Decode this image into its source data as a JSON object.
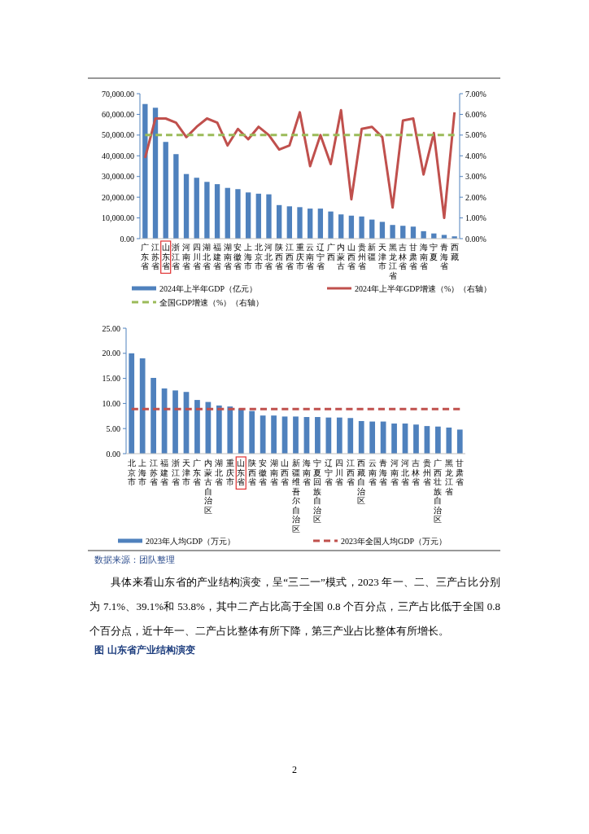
{
  "chart_data": [
    {
      "type": "bar",
      "categories": [
        "广东省",
        "江苏省",
        "山东省",
        "浙江省",
        "河南省",
        "四川省",
        "湖北省",
        "福建省",
        "湖南省",
        "安徽省",
        "上海市",
        "北京市",
        "河北省",
        "陕西省",
        "江西省",
        "重庆市",
        "云南省",
        "辽宁省",
        "广西",
        "内蒙古",
        "山西省",
        "贵州省",
        "新疆",
        "天津市",
        "黑龙江省",
        "吉林省",
        "甘肃省",
        "海南省",
        "宁夏",
        "青海省",
        "西藏"
      ],
      "series": [
        {
          "name": "2024年上半年GDP（亿元）",
          "color": "#4f81bd",
          "values": [
            65000,
            63200,
            46700,
            40800,
            31200,
            29400,
            27400,
            26300,
            24500,
            23900,
            22300,
            21700,
            21400,
            16200,
            15600,
            15200,
            14500,
            14500,
            13100,
            11700,
            11100,
            10700,
            9200,
            8100,
            6600,
            6200,
            5800,
            3600,
            2500,
            1800,
            1100
          ]
        },
        {
          "name": "2024年上半年GDP增速（%）（右轴）",
          "type": "line",
          "axis": "y2",
          "color": "#c0504d",
          "line_style": "solid",
          "values": [
            3.9,
            5.8,
            5.8,
            5.6,
            4.9,
            5.4,
            5.8,
            5.6,
            4.5,
            5.3,
            4.8,
            5.4,
            5.0,
            4.3,
            4.5,
            6.1,
            3.5,
            5.0,
            3.6,
            6.2,
            1.9,
            5.3,
            5.4,
            4.9,
            1.5,
            5.7,
            5.8,
            3.1,
            5.1,
            1.0,
            6.1
          ]
        },
        {
          "name": "全国GDP增速（%）（右轴）",
          "type": "line",
          "axis": "y2",
          "color": "#9bbb59",
          "line_style": "dashed",
          "values": [
            5,
            5,
            5,
            5,
            5,
            5,
            5,
            5,
            5,
            5,
            5,
            5,
            5,
            5,
            5,
            5,
            5,
            5,
            5,
            5,
            5,
            5,
            5,
            5,
            5,
            5,
            5,
            5,
            5,
            5,
            5
          ]
        }
      ],
      "ylim": [
        0,
        70000
      ],
      "yticks": [
        {
          "value": 0,
          "label": "0.00"
        },
        {
          "value": 10000,
          "label": "10,000.00"
        },
        {
          "value": 20000,
          "label": "20,000.00"
        },
        {
          "value": 30000,
          "label": "30,000.00"
        },
        {
          "value": 40000,
          "label": "40,000.00"
        },
        {
          "value": 50000,
          "label": "50,000.00"
        },
        {
          "value": 60000,
          "label": "60,000.00"
        },
        {
          "value": 70000,
          "label": "70,000.00"
        }
      ],
      "y2lim": [
        0,
        7
      ],
      "y2ticks": [
        {
          "value": 0,
          "label": "0.00%"
        },
        {
          "value": 1,
          "label": "1.00%"
        },
        {
          "value": 2,
          "label": "2.00%"
        },
        {
          "value": 3,
          "label": "3.00%"
        },
        {
          "value": 4,
          "label": "4.00%"
        },
        {
          "value": 5,
          "label": "5.00%"
        },
        {
          "value": 6,
          "label": "6.00%"
        },
        {
          "value": 7,
          "label": "7.00%"
        }
      ],
      "grid": false,
      "legend": "bottom",
      "marker": "none"
    },
    {
      "type": "bar",
      "categories": [
        "北京市",
        "上海市",
        "江苏省",
        "福建省",
        "浙江省",
        "天津市",
        "广东省",
        "内蒙古自治区",
        "湖北省",
        "重庆市",
        "山东省",
        "陕西省",
        "安徽省",
        "湖南省",
        "山西省",
        "新疆维吾尔自治区",
        "海南省",
        "宁夏回族自治区",
        "辽宁省",
        "四川省",
        "江西省",
        "西藏自治区",
        "云南省",
        "青海省",
        "河南省",
        "河北省",
        "吉林省",
        "贵州省",
        "广西壮族自治区",
        "黑龙江省",
        "甘肃省"
      ],
      "series": [
        {
          "name": "2023年人均GDP（万元）",
          "color": "#4f81bd",
          "values": [
            20.0,
            19.0,
            15.1,
            13.0,
            12.6,
            12.3,
            10.7,
            10.3,
            9.6,
            9.4,
            9.0,
            8.5,
            7.6,
            7.6,
            7.4,
            7.4,
            7.3,
            7.3,
            7.2,
            7.2,
            7.1,
            6.5,
            6.4,
            6.4,
            6.0,
            6.0,
            5.8,
            5.5,
            5.4,
            5.2,
            4.8
          ]
        },
        {
          "name": "2023年全国人均GDP（万元）",
          "type": "line",
          "color": "#c0504d",
          "line_style": "dashed",
          "values": [
            8.9,
            8.9,
            8.9,
            8.9,
            8.9,
            8.9,
            8.9,
            8.9,
            8.9,
            8.9,
            8.9,
            8.9,
            8.9,
            8.9,
            8.9,
            8.9,
            8.9,
            8.9,
            8.9,
            8.9,
            8.9,
            8.9,
            8.9,
            8.9,
            8.9,
            8.9,
            8.9,
            8.9,
            8.9,
            8.9,
            8.9
          ]
        }
      ],
      "ylim": [
        0,
        25
      ],
      "yticks": [
        {
          "value": 0,
          "label": "0.00"
        },
        {
          "value": 5,
          "label": "5.00"
        },
        {
          "value": 10,
          "label": "10.00"
        },
        {
          "value": 15,
          "label": "15.00"
        },
        {
          "value": 20,
          "label": "20.00"
        },
        {
          "value": 25,
          "label": "25.00"
        }
      ],
      "grid": false,
      "legend": "bottom",
      "marker": "none",
      "annotations": [
        "数据来源：团队整理",
        "具体来看山东省的产业结构演变，呈“三二一”模式，2023 年一、二、三产占比分别为 7.1%、39.1%和 53.8%，其中二产占比高于全国 0.8 个百分点，三产占比低于全国 0.8 个百分点，近十年一、二产占比整体有所下降，第三产业占比整体有所增长。",
        "图  山东省产业结构演变",
        "2"
      ]
    }
  ]
}
